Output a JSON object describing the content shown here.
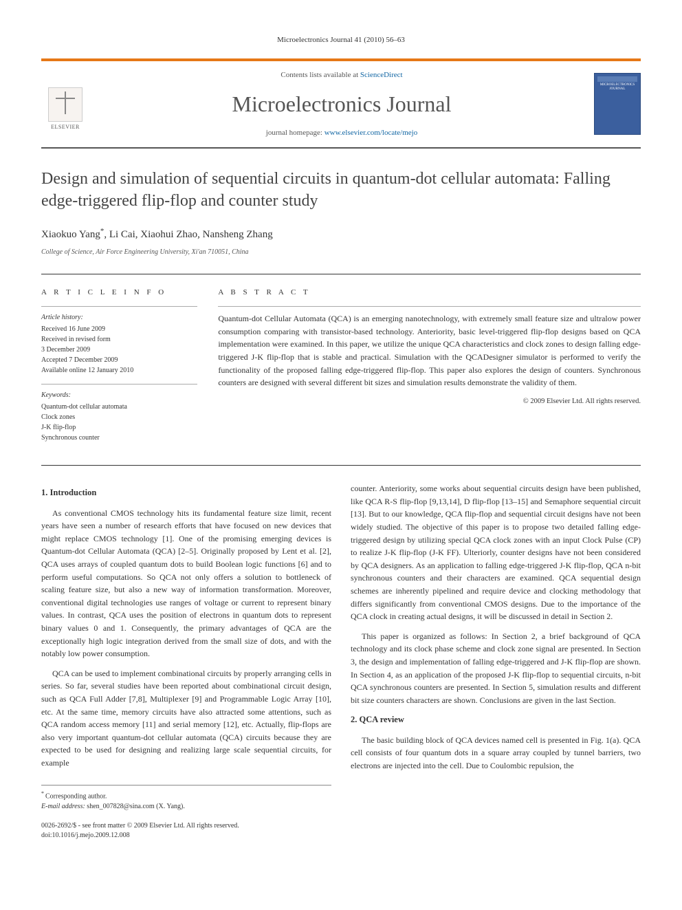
{
  "colors": {
    "accent_orange": "#e67817",
    "link_blue": "#1065a3",
    "text_dark": "#333333",
    "text_mid": "#555555",
    "cover_blue": "#3b5f9e",
    "border_gray": "#aaaaaa"
  },
  "header": {
    "running_head": "Microelectronics Journal 41 (2010) 56–63"
  },
  "banner": {
    "publisher_name": "ELSEVIER",
    "contents_prefix": "Contents lists available at ",
    "contents_link": "ScienceDirect",
    "journal_name": "Microelectronics Journal",
    "homepage_prefix": "journal homepage: ",
    "homepage_link": "www.elsevier.com/locate/mejo",
    "cover_label": "MICROELECTRONICS JOURNAL"
  },
  "article": {
    "title": "Design and simulation of sequential circuits in quantum-dot cellular automata: Falling edge-triggered flip-flop and counter study",
    "authors": "Xiaokuo Yang",
    "authors_rest": ", Li Cai, Xiaohui Zhao, Nansheng Zhang",
    "corr_symbol": "*",
    "affiliation": "College of Science, Air Force Engineering University, Xi'an 710051, China"
  },
  "article_info": {
    "label": "A R T I C L E   I N F O",
    "history_label": "Article history:",
    "history": [
      "Received 16 June 2009",
      "Received in revised form",
      "3 December 2009",
      "Accepted 7 December 2009",
      "Available online 12 January 2010"
    ],
    "keywords_label": "Keywords:",
    "keywords": [
      "Quantum-dot cellular automata",
      "Clock zones",
      "J-K flip-flop",
      "Synchronous counter"
    ]
  },
  "abstract": {
    "label": "A B S T R A C T",
    "text": "Quantum-dot Cellular Automata (QCA) is an emerging nanotechnology, with extremely small feature size and ultralow power consumption comparing with transistor-based technology. Anteriority, basic level-triggered flip-flop designs based on QCA implementation were examined. In this paper, we utilize the unique QCA characteristics and clock zones to design falling edge-triggered J-K flip-flop that is stable and practical. Simulation with the QCADesigner simulator is performed to verify the functionality of the proposed falling edge-triggered flip-flop. This paper also explores the design of counters. Synchronous counters are designed with several different bit sizes and simulation results demonstrate the validity of them.",
    "copyright": "© 2009 Elsevier Ltd. All rights reserved."
  },
  "body": {
    "sec1_title": "1.  Introduction",
    "sec1_p1": "As conventional CMOS technology hits its fundamental feature size limit, recent years have seen a number of research efforts that have focused on new devices that might replace CMOS technology [1]. One of the promising emerging devices is Quantum-dot Cellular Automata (QCA) [2–5]. Originally proposed by Lent et al. [2], QCA uses arrays of coupled quantum dots to build Boolean logic functions [6] and to perform useful computations. So QCA not only offers a solution to bottleneck of scaling feature size, but also a new way of information transformation. Moreover, conventional digital technologies use ranges of voltage or current to represent binary values. In contrast, QCA uses the position of electrons in quantum dots to represent binary values 0 and 1. Consequently, the primary advantages of QCA are the exceptionally high logic integration derived from the small size of dots, and with the notably low power consumption.",
    "sec1_p2": "QCA can be used to implement combinational circuits by properly arranging cells in series. So far, several studies have been reported about combinational circuit design, such as QCA Full Adder [7,8], Multiplexer [9] and Programmable Logic Array [10], etc. At the same time, memory circuits have also attracted some attentions, such as QCA random access memory [11] and serial memory [12], etc. Actually, flip-flops are also very important quantum-dot cellular automata (QCA) circuits because they are expected to be used for designing and realizing large scale sequential circuits, for example",
    "sec1_p3": "counter. Anteriority, some works about sequential circuits design have been published, like QCA R-S flip-flop [9,13,14], D flip-flop [13–15] and Semaphore sequential circuit [13]. But to our knowledge, QCA flip-flop and sequential circuit designs have not been widely studied. The objective of this paper is to propose two detailed falling edge-triggered design by utilizing special QCA clock zones with an input Clock Pulse (CP) to realize J-K flip-flop (J-K FF). Ulteriorly, counter designs have not been considered by QCA designers. As an application to falling edge-triggered J-K flip-flop, QCA n-bit synchronous counters and their characters are examined. QCA sequential design schemes are inherently pipelined and require device and clocking methodology that differs significantly from conventional CMOS designs. Due to the importance of the QCA clock in creating actual designs, it will be discussed in detail in Section 2.",
    "sec1_p4": "This paper is organized as follows: In Section 2, a brief background of QCA technology and its clock phase scheme and clock zone signal are presented. In Section 3, the design and implementation of falling edge-triggered and J-K flip-flop are shown. In Section 4, as an application of the proposed J-K flip-flop to sequential circuits, n-bit QCA synchronous counters are presented. In Section 5, simulation results and different bit size counters characters are shown. Conclusions are given in the last Section.",
    "sec2_title": "2.  QCA review",
    "sec2_p1": "The basic building block of QCA devices named cell is presented in Fig. 1(a). QCA cell consists of four quantum dots in a square array coupled by tunnel barriers, two electrons are injected into the cell. Due to Coulombic repulsion, the"
  },
  "footer": {
    "corr_symbol": "*",
    "corr_text": "Corresponding author.",
    "email_label": "E-mail address:",
    "email": "shen_007828@sina.com (X. Yang).",
    "issn_line": "0026-2692/$ - see front matter © 2009 Elsevier Ltd. All rights reserved.",
    "doi_line": "doi:10.1016/j.mejo.2009.12.008"
  }
}
